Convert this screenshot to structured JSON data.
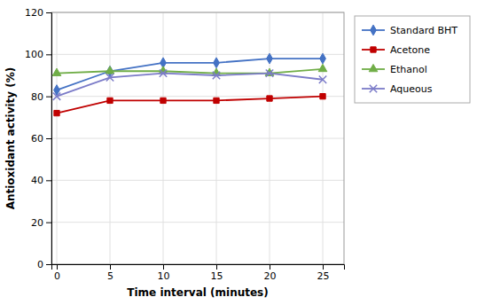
{
  "chart_data": {
    "type": "line",
    "x": [
      0,
      5,
      10,
      15,
      20,
      25
    ],
    "series": [
      {
        "name": "Standard BHT",
        "values": [
          83,
          92,
          96,
          96,
          98,
          98
        ],
        "color": "#4472C4",
        "marker": "diamond"
      },
      {
        "name": "Acetone",
        "values": [
          72,
          78,
          78,
          78,
          79,
          80
        ],
        "color": "#C00000",
        "marker": "square"
      },
      {
        "name": "Ethanol",
        "values": [
          91,
          92,
          92,
          91,
          91,
          93
        ],
        "color": "#70AD47",
        "marker": "triangle"
      },
      {
        "name": "Aqueous",
        "values": [
          80,
          89,
          91,
          90,
          91,
          88
        ],
        "color": "#7B7BC8",
        "marker": "x"
      }
    ],
    "xlabel": "Time interval (minutes)",
    "ylabel": "Antioxidant activity (%)",
    "xlim": [
      -0.5,
      27
    ],
    "xticks": [
      0,
      5,
      10,
      15,
      20,
      25
    ],
    "ylim": [
      0,
      120
    ],
    "yticks": [
      0,
      20,
      40,
      60,
      80,
      100,
      120
    ],
    "grid": true,
    "legend": "right"
  }
}
